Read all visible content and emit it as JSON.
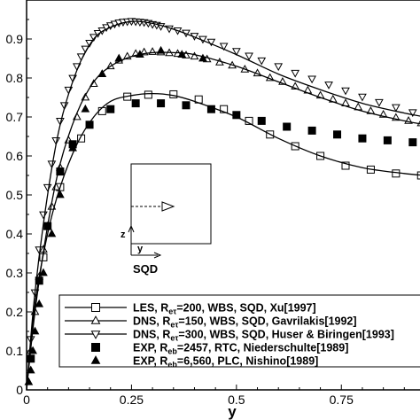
{
  "chart_data": {
    "type": "line",
    "title": "",
    "xlabel": "y",
    "ylabel": "",
    "xlim": [
      0,
      0.95
    ],
    "ylim": [
      0,
      1.0
    ],
    "x_ticks": [
      "0",
      "0.25",
      "0.5",
      "0.75"
    ],
    "x_tick_values": [
      0,
      0.25,
      0.5,
      0.75
    ],
    "y_ticks": [
      "0",
      "0.1",
      "0.2",
      "0.3",
      "0.4",
      "0.5",
      "0.6",
      "0.7",
      "0.8",
      "0.9"
    ],
    "y_tick_values": [
      0,
      0.1,
      0.2,
      0.3,
      0.4,
      0.5,
      0.6,
      0.7,
      0.8,
      0.9
    ],
    "grid": false,
    "legend_position": "bottom-right",
    "series": [
      {
        "name": "LES, R_eτ=200, WBS, SQD, Xu[1997]",
        "legend_parts": [
          "LES, R",
          "eτ",
          "=200, WBS, SQD, Xu[1997]"
        ],
        "marker": "square-open",
        "color": "#000000",
        "x": [
          0,
          0.02,
          0.05,
          0.08,
          0.12,
          0.16,
          0.2,
          0.25,
          0.3,
          0.35,
          0.4,
          0.5,
          0.6,
          0.7,
          0.8,
          0.9,
          0.95
        ],
        "y": [
          0,
          0.22,
          0.4,
          0.52,
          0.63,
          0.7,
          0.74,
          0.755,
          0.76,
          0.755,
          0.74,
          0.7,
          0.645,
          0.6,
          0.57,
          0.555,
          0.55
        ],
        "marker_x": [
          0.04,
          0.08,
          0.13,
          0.18,
          0.24,
          0.29,
          0.35,
          0.41,
          0.47,
          0.53,
          0.58,
          0.64,
          0.7,
          0.76,
          0.82,
          0.88,
          0.94
        ],
        "marker_y": [
          0.34,
          0.52,
          0.645,
          0.715,
          0.752,
          0.757,
          0.758,
          0.745,
          0.72,
          0.69,
          0.655,
          0.625,
          0.6,
          0.575,
          0.565,
          0.555,
          0.55
        ]
      },
      {
        "name": "DNS, R_eτ=150, WBS, SQD, Gavrilakis[1992]",
        "legend_parts": [
          "DNS, R",
          "eτ",
          "=150, WBS, SQD, Gavrilakis[1992]"
        ],
        "marker": "triangle-up-open",
        "color": "#000000",
        "x": [
          0,
          0.02,
          0.05,
          0.08,
          0.12,
          0.16,
          0.2,
          0.25,
          0.3,
          0.35,
          0.4,
          0.5,
          0.6,
          0.7,
          0.8,
          0.9,
          0.95
        ],
        "y": [
          0,
          0.2,
          0.42,
          0.58,
          0.71,
          0.79,
          0.83,
          0.855,
          0.865,
          0.865,
          0.86,
          0.83,
          0.79,
          0.75,
          0.715,
          0.69,
          0.68
        ],
        "marker_x": [
          0.01,
          0.02,
          0.03,
          0.04,
          0.05,
          0.06,
          0.07,
          0.08,
          0.1,
          0.12,
          0.14,
          0.16,
          0.18,
          0.2,
          0.22,
          0.24,
          0.26,
          0.28,
          0.3,
          0.32,
          0.34,
          0.36,
          0.38,
          0.4,
          0.43,
          0.46,
          0.49,
          0.52,
          0.55,
          0.58,
          0.61,
          0.64,
          0.67,
          0.7,
          0.73,
          0.76,
          0.79,
          0.82,
          0.85,
          0.88,
          0.91,
          0.94
        ],
        "marker_y": [
          0.1,
          0.2,
          0.29,
          0.36,
          0.42,
          0.47,
          0.52,
          0.57,
          0.64,
          0.7,
          0.75,
          0.785,
          0.81,
          0.83,
          0.845,
          0.855,
          0.862,
          0.866,
          0.867,
          0.866,
          0.864,
          0.862,
          0.858,
          0.855,
          0.848,
          0.84,
          0.832,
          0.822,
          0.812,
          0.8,
          0.79,
          0.778,
          0.768,
          0.755,
          0.745,
          0.735,
          0.725,
          0.715,
          0.706,
          0.698,
          0.69,
          0.684
        ]
      },
      {
        "name": "DNS, R_eτ=300, WBS, SQD, Huser & Biringen[1993]",
        "legend_parts": [
          "DNS, R",
          "eτ",
          "=300, WBS, SQD, Huser & Biringen[1993]"
        ],
        "marker": "triangle-down-open",
        "color": "#000000",
        "x": [
          0,
          0.02,
          0.05,
          0.08,
          0.12,
          0.16,
          0.2,
          0.25,
          0.3,
          0.35,
          0.4,
          0.5,
          0.6,
          0.7,
          0.8,
          0.9,
          0.95
        ],
        "y": [
          0,
          0.25,
          0.5,
          0.68,
          0.82,
          0.9,
          0.93,
          0.945,
          0.94,
          0.925,
          0.905,
          0.86,
          0.81,
          0.77,
          0.735,
          0.71,
          0.7
        ],
        "marker_x": [
          0.01,
          0.02,
          0.03,
          0.04,
          0.05,
          0.06,
          0.07,
          0.08,
          0.09,
          0.1,
          0.11,
          0.12,
          0.13,
          0.14,
          0.15,
          0.16,
          0.17,
          0.18,
          0.19,
          0.2,
          0.21,
          0.22,
          0.23,
          0.24,
          0.25,
          0.26,
          0.27,
          0.28,
          0.29,
          0.3,
          0.31,
          0.32,
          0.34,
          0.36,
          0.38,
          0.4,
          0.42,
          0.44,
          0.47,
          0.5,
          0.53,
          0.56,
          0.6,
          0.64,
          0.68,
          0.72,
          0.76,
          0.8,
          0.84,
          0.88,
          0.92,
          0.95
        ],
        "marker_y": [
          0.13,
          0.25,
          0.36,
          0.45,
          0.52,
          0.58,
          0.64,
          0.69,
          0.73,
          0.77,
          0.8,
          0.83,
          0.855,
          0.875,
          0.89,
          0.905,
          0.915,
          0.922,
          0.93,
          0.935,
          0.939,
          0.942,
          0.944,
          0.945,
          0.946,
          0.945,
          0.944,
          0.943,
          0.941,
          0.938,
          0.936,
          0.933,
          0.927,
          0.922,
          0.916,
          0.908,
          0.9,
          0.893,
          0.882,
          0.869,
          0.857,
          0.845,
          0.83,
          0.813,
          0.798,
          0.783,
          0.768,
          0.752,
          0.738,
          0.725,
          0.712,
          0.703
        ]
      },
      {
        "name": "EXP, R_eb=2457, RTC, Niederschulte[1989]",
        "legend_parts": [
          "EXP, R",
          "eb",
          "=2457, RTC, Niederschulte[1989]"
        ],
        "marker": "square-filled",
        "color": "#000000",
        "x": [],
        "y": [],
        "marker_x": [
          0.01,
          0.03,
          0.05,
          0.08,
          0.11,
          0.15,
          0.2,
          0.26,
          0.32,
          0.38,
          0.44,
          0.5,
          0.56,
          0.62,
          0.68,
          0.74,
          0.8,
          0.86,
          0.92
        ],
        "marker_y": [
          0.08,
          0.28,
          0.42,
          0.56,
          0.63,
          0.68,
          0.72,
          0.735,
          0.735,
          0.73,
          0.72,
          0.705,
          0.69,
          0.675,
          0.665,
          0.655,
          0.645,
          0.64,
          0.635
        ]
      },
      {
        "name": "EXP, R_eb=6,560, PLC, Nishino[1989]",
        "legend_parts": [
          "EXP, R",
          "eb",
          "=6,560, PLC, Nishino[1989]"
        ],
        "marker": "triangle-up-filled",
        "color": "#000000",
        "x": [],
        "y": [],
        "marker_x": [
          0.005,
          0.01,
          0.015,
          0.02,
          0.03,
          0.04,
          0.06,
          0.08,
          0.11,
          0.14,
          0.18,
          0.22,
          0.27,
          0.32,
          0.37,
          0.42
        ],
        "marker_y": [
          0.02,
          0.05,
          0.1,
          0.15,
          0.22,
          0.3,
          0.4,
          0.5,
          0.62,
          0.72,
          0.81,
          0.85,
          0.86,
          0.87,
          0.86,
          0.85
        ]
      }
    ]
  },
  "inset": {
    "title": "SQD",
    "axis_z": "z",
    "axis_y": "y"
  }
}
